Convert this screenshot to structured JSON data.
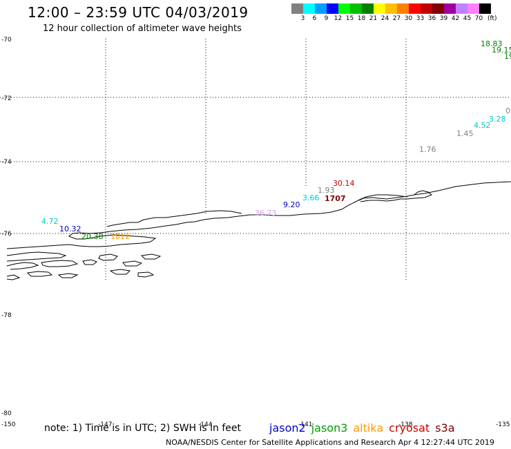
{
  "header": {
    "title": "12:00 – 23:59 UTC 04/03/2019",
    "subtitle": "12 hour collection of altimeter wave heights"
  },
  "legend": {
    "colors": [
      "#808080",
      "#00ffff",
      "#00a0ff",
      "#0000ff",
      "#00ff00",
      "#00c000",
      "#008000",
      "#ffff00",
      "#ffc000",
      "#ff8000",
      "#ff0000",
      "#c00000",
      "#800000",
      "#a000a0",
      "#c080ff",
      "#ff80ff",
      "#000000"
    ],
    "labels": [
      "3",
      "6",
      "9",
      "12",
      "15",
      "18",
      "21",
      "24",
      "27",
      "30",
      "33",
      "36",
      "39",
      "42",
      "45",
      "70"
    ],
    "unit": "(ft)"
  },
  "axes": {
    "lat_labels": [
      "-70",
      "-72",
      "-74",
      "-76",
      "-78",
      "-80"
    ],
    "lon_labels": [
      "-150",
      "-147",
      "-144",
      "-141",
      "-138",
      "-135"
    ]
  },
  "observations": [
    {
      "text": "18.83",
      "color": "#008000"
    },
    {
      "text": "19.15",
      "color": "#008000"
    },
    {
      "text": "19",
      "color": "#008000"
    },
    {
      "text": "0",
      "color": "#808080"
    },
    {
      "text": "3.28",
      "color": "#00c8c8"
    },
    {
      "text": "4.52",
      "color": "#00c8c8"
    },
    {
      "text": "1.45",
      "color": "#808080"
    },
    {
      "text": "1.76",
      "color": "#808080"
    },
    {
      "text": "30.14",
      "color": "#c00000"
    },
    {
      "text": "1.93",
      "color": "#808080"
    },
    {
      "text": "3.66",
      "color": "#00c8c8"
    },
    {
      "text": "1707",
      "color": "#800000"
    },
    {
      "text": "9.20",
      "color": "#0000c0"
    },
    {
      "text": "36.73",
      "color": "#d8a0e8"
    },
    {
      "text": "4.72",
      "color": "#00c8c8"
    },
    {
      "text": "10.32",
      "color": "#0000c0"
    },
    {
      "text": "20.38",
      "color": "#008000"
    },
    {
      "text": "1812",
      "color": "#ff9900"
    }
  ],
  "note": "note: 1) Time is in UTC; 2) SWH is in feet",
  "satellites": [
    {
      "name": "jason2",
      "color": "#0000cc"
    },
    {
      "name": "jason3",
      "color": "#009900"
    },
    {
      "name": "altika",
      "color": "#ff9900"
    },
    {
      "name": "cryosat",
      "color": "#cc0000"
    },
    {
      "name": "s3a",
      "color": "#800000"
    }
  ],
  "footer": "NOAA/NESDIS Center for Satellite Applications and Research    Apr  4 12:27:44 UTC 2019"
}
